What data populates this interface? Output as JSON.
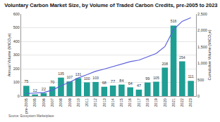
{
  "chart_data": {
    "type": "bar",
    "title": "Voluntary Carbon Market Size, by Volume of Traded Carbon Credits, pre-2005 to 2023",
    "source": "Source: Ecosystem Marketplace",
    "y_label": "Annual Volume (MtCO₂e)",
    "y2_label": "Cumulative Volume (MtCO₂e)",
    "categories": [
      "pre-2005",
      "2005",
      "2006",
      "2007",
      "2008",
      "2009",
      "2010",
      "2011",
      "2012",
      "2013",
      "2014",
      "2015",
      "2016",
      "2017",
      "2018",
      "2019",
      "2020",
      "2021",
      "2022",
      "2023"
    ],
    "series": [
      {
        "type": "bar",
        "color": "#1f9e94",
        "data_labels": true,
        "values": [
          75,
          12,
          22,
          70,
          135,
          107,
          131,
          100,
          103,
          68,
          77,
          84,
          64,
          47,
          99,
          105,
          208,
          516,
          254,
          111
        ]
      },
      {
        "type": "line",
        "color": "#5b5fd8",
        "axis": "y2",
        "line_style": "solid",
        "values": [
          75,
          87,
          109,
          179,
          314,
          421,
          552,
          652,
          755,
          823,
          900,
          984,
          1048,
          1095,
          1194,
          1299,
          1507,
          2023,
          2277,
          2388
        ]
      }
    ],
    "ylim": [
      0,
      600
    ],
    "yticks": [
      0,
      100,
      200,
      300,
      400,
      500,
      600
    ],
    "y2lim": [
      0,
      2500
    ],
    "y2ticks": [
      0,
      500,
      {
        "value": 1000,
        "label": "1,000"
      },
      {
        "value": 1500,
        "label": "1,500"
      },
      {
        "value": 2000,
        "label": "2,000"
      },
      {
        "value": 2500,
        "label": "2,500"
      }
    ],
    "grid": true
  }
}
